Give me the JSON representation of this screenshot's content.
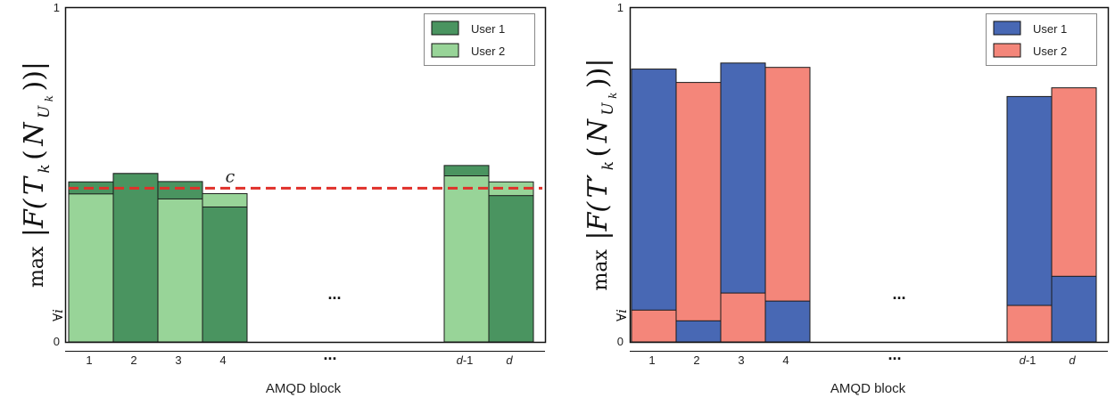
{
  "chart_data": [
    {
      "type": "bar",
      "stacked": "overlap",
      "categories": [
        "1",
        "2",
        "3",
        "4",
        "d-1",
        "d"
      ],
      "ellipsis_between": "4 and d-1",
      "ellipsis_text": "...",
      "xlabel": "AMQD block",
      "ylabel_parts": [
        "max",
        "∀i",
        "|F(",
        "T",
        "k",
        "(",
        "N",
        "U",
        "k",
        "))|"
      ],
      "ylim": [
        0,
        1
      ],
      "y_ticks": [
        "0",
        "1"
      ],
      "threshold": {
        "value": 0.459,
        "label": "c",
        "color": "#e0302a"
      },
      "colors": {
        "User 1": "#4a9460",
        "User 2": "#98d498"
      },
      "series": [
        {
          "name": "User 1",
          "values": [
            0.478,
            0.503,
            0.479,
            0.403,
            0.527,
            0.437
          ]
        },
        {
          "name": "User 2",
          "values": [
            0.442,
            0.503,
            0.427,
            0.443,
            0.496,
            0.478
          ]
        }
      ],
      "front_series_per_bar": [
        "User 2",
        "User 1",
        "User 2",
        "User 1",
        "User 2",
        "User 1"
      ],
      "legend": [
        "User 1",
        "User 2"
      ],
      "legend_position": "top-right"
    },
    {
      "type": "bar",
      "stacked": "overlap",
      "categories": [
        "1",
        "2",
        "3",
        "4",
        "d-1",
        "d"
      ],
      "ellipsis_between": "4 and d-1",
      "ellipsis_text": "...",
      "xlabel": "AMQD block",
      "ylabel_parts": [
        "max",
        "∀i",
        "|F(",
        "T′",
        "k",
        "(",
        "N",
        "U",
        "k",
        "))|"
      ],
      "ylim": [
        0,
        1
      ],
      "y_ticks": [
        "0",
        "1"
      ],
      "colors": {
        "User 1": "#4868b4",
        "User 2": "#f4867a"
      },
      "series": [
        {
          "name": "User 1",
          "values": [
            0.815,
            0.063,
            0.833,
            0.122,
            0.733,
            0.196
          ]
        },
        {
          "name": "User 2",
          "values": [
            0.095,
            0.775,
            0.146,
            0.82,
            0.109,
            0.759
          ]
        }
      ],
      "front_series_per_bar": [
        "User 2",
        "User 1",
        "User 2",
        "User 1",
        "User 2",
        "User 1"
      ],
      "legend": [
        "User 1",
        "User 2"
      ],
      "legend_position": "top-right"
    }
  ]
}
